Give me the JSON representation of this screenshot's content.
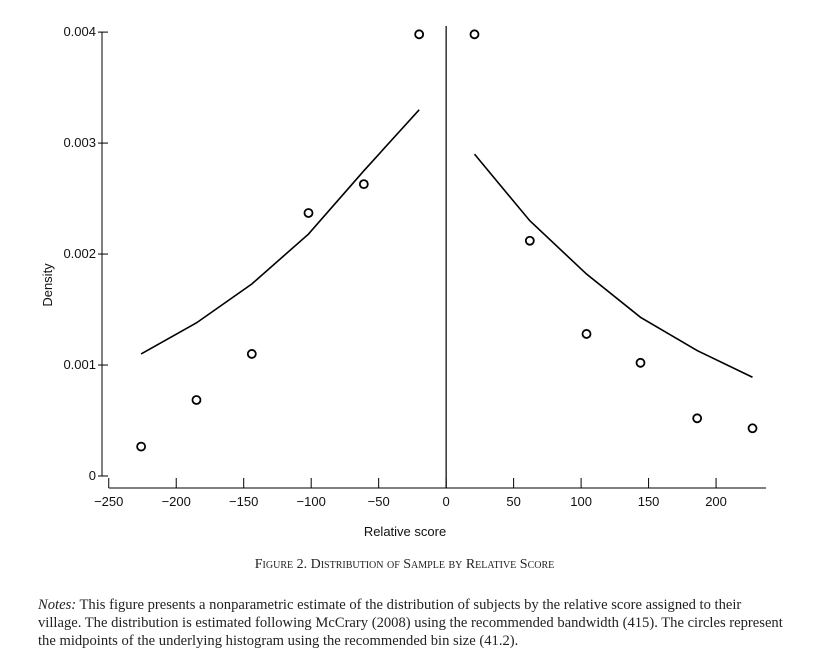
{
  "chart_data": {
    "type": "scatter",
    "xlabel": "Relative score",
    "ylabel": "Density",
    "xlim": [
      -255,
      237
    ],
    "ylim": [
      0,
      0.0041
    ],
    "xticks": [
      {
        "value": -250,
        "label": "−250"
      },
      {
        "value": -200,
        "label": "−200"
      },
      {
        "value": -150,
        "label": "−150"
      },
      {
        "value": -100,
        "label": "−100"
      },
      {
        "value": -50,
        "label": "−50"
      },
      0,
      50,
      100,
      150,
      200
    ],
    "yticks": [
      0,
      0.001,
      0.002,
      0.003,
      0.004
    ],
    "vline": 0,
    "series": [
      {
        "type": "scatter",
        "color": "#000000",
        "x": [
          -226,
          -185,
          -144,
          -102,
          -61,
          -20,
          21,
          62,
          104,
          144,
          186,
          227
        ],
        "values": [
          0.000265,
          0.000685,
          0.0011,
          0.00237,
          0.00263,
          0.00398,
          0.00398,
          0.00212,
          0.00128,
          0.00102,
          0.00052,
          0.00043
        ]
      },
      {
        "type": "line",
        "color": "#000000",
        "x": [
          -226,
          -185,
          -144,
          -102,
          -61,
          -20
        ],
        "values": [
          0.0011,
          0.00138,
          0.00173,
          0.00218,
          0.00275,
          0.0033
        ]
      },
      {
        "type": "line",
        "color": "#000000",
        "x": [
          21,
          62,
          104,
          144,
          186,
          227
        ],
        "values": [
          0.0029,
          0.0023,
          0.00182,
          0.00143,
          0.00113,
          0.00089
        ]
      }
    ]
  },
  "caption": "Figure 2. Distribution of Sample by Relative Score",
  "notes": {
    "label": "Notes:",
    "text": "This figure presents a nonparametric estimate of the distribution of subjects by the relative score assigned to their village. The distribution is estimated following McCrary (2008) using the recommended bandwidth (415). The circles represent the midpoints of the underlying histogram using the recommended bin size (41.2)."
  }
}
